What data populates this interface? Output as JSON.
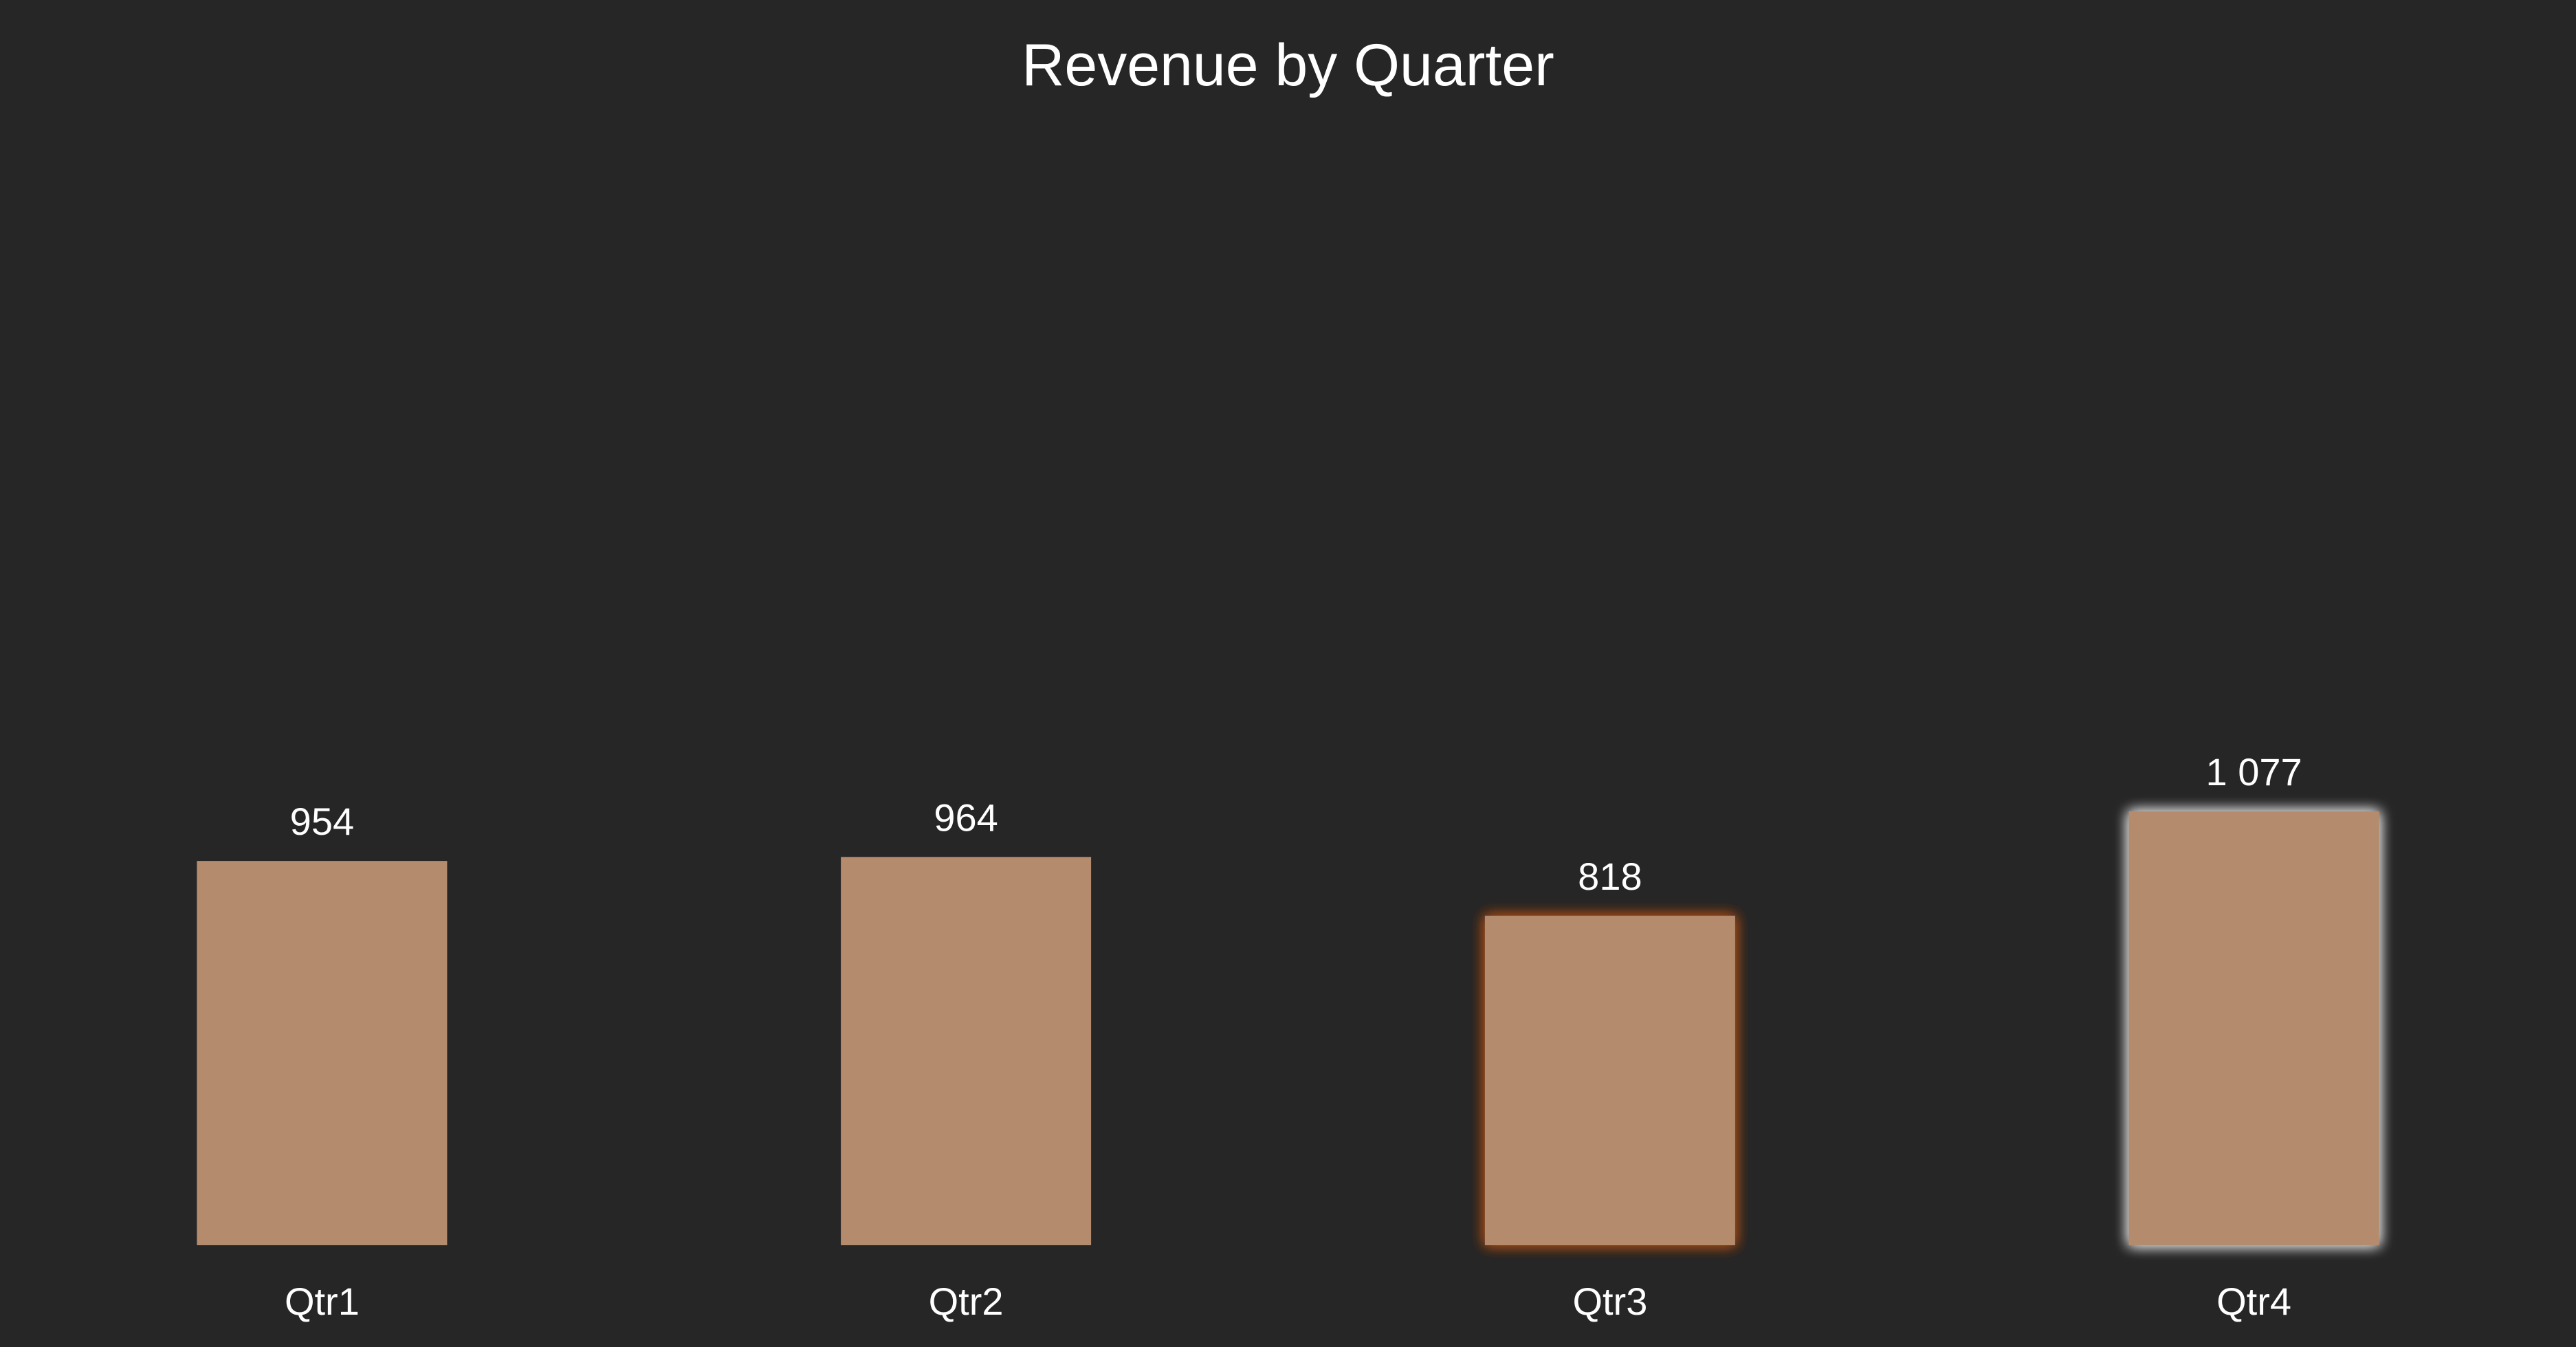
{
  "chart_data": {
    "type": "bar",
    "title": "Revenue by Quarter",
    "categories": [
      "Qtr1",
      "Qtr2",
      "Qtr3",
      "Qtr4"
    ],
    "values": [
      954,
      964,
      818,
      1077
    ],
    "value_labels": [
      "954",
      "964",
      "818",
      "1 077"
    ],
    "xlabel": "",
    "ylabel": "",
    "ylim": [
      0,
      2750
    ],
    "grid": false,
    "legend": "none",
    "bar_color": "#b48b6d",
    "background_color": "#262626",
    "text_color": "#ffffff",
    "highlights": [
      {
        "category": "Qtr3",
        "glow_color": "#a24a1b"
      },
      {
        "category": "Qtr4",
        "glow_color": "#d9d9d9"
      }
    ]
  }
}
